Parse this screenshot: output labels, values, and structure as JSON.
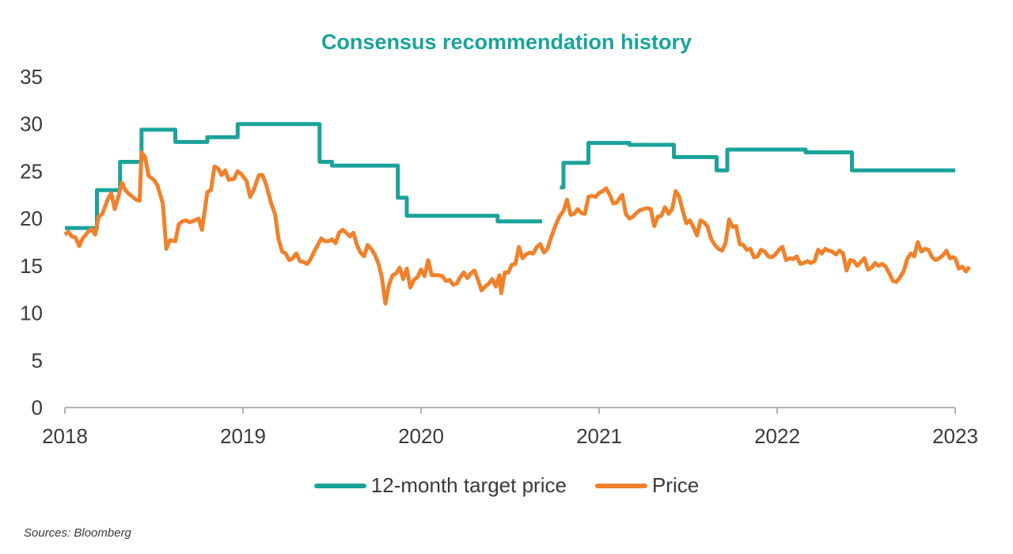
{
  "chart_data": {
    "type": "line",
    "title": "Consensus recommendation history",
    "xlabel": "",
    "ylabel": "",
    "ylim": [
      0,
      35
    ],
    "yticks": [
      0,
      5,
      10,
      15,
      20,
      25,
      30,
      35
    ],
    "xlim": [
      2018,
      2023
    ],
    "xticks": [
      2018,
      2019,
      2020,
      2021,
      2022,
      2023
    ],
    "grid": false,
    "legend_position": "bottom",
    "series": [
      {
        "name": "12-month target price",
        "color": "#1aa39a",
        "style": "step",
        "segments": [
          [
            [
              2018.0,
              19.0
            ],
            [
              2018.18,
              19.0
            ],
            [
              2018.18,
              23.0
            ],
            [
              2018.31,
              23.0
            ],
            [
              2018.31,
              26.0
            ],
            [
              2018.43,
              26.0
            ],
            [
              2018.43,
              29.4
            ],
            [
              2018.62,
              29.4
            ],
            [
              2018.62,
              28.1
            ],
            [
              2018.8,
              28.1
            ],
            [
              2018.8,
              28.6
            ],
            [
              2018.97,
              28.6
            ],
            [
              2018.97,
              30.0
            ],
            [
              2019.43,
              30.0
            ],
            [
              2019.43,
              26.0
            ],
            [
              2019.5,
              26.0
            ],
            [
              2019.5,
              25.6
            ],
            [
              2019.87,
              25.6
            ],
            [
              2019.87,
              22.2
            ],
            [
              2019.92,
              22.2
            ],
            [
              2019.92,
              20.3
            ],
            [
              2020.43,
              20.3
            ],
            [
              2020.43,
              19.7
            ],
            [
              2020.68,
              19.7
            ]
          ],
          [
            [
              2020.78,
              23.3
            ],
            [
              2020.8,
              23.3
            ],
            [
              2020.8,
              25.9
            ],
            [
              2020.94,
              25.9
            ],
            [
              2020.94,
              28.0
            ],
            [
              2021.17,
              28.0
            ],
            [
              2021.17,
              27.8
            ],
            [
              2021.42,
              27.8
            ],
            [
              2021.42,
              26.5
            ],
            [
              2021.66,
              26.5
            ],
            [
              2021.66,
              25.1
            ],
            [
              2021.72,
              25.1
            ],
            [
              2021.72,
              27.3
            ],
            [
              2022.16,
              27.3
            ],
            [
              2022.16,
              27.0
            ],
            [
              2022.42,
              27.0
            ],
            [
              2022.42,
              25.1
            ],
            [
              2023.0,
              25.1
            ]
          ]
        ]
      },
      {
        "name": "Price",
        "color": "#f0812b",
        "style": "line",
        "points": [
          [
            2018.0,
            18.3
          ],
          [
            2018.02,
            18.6
          ],
          [
            2018.04,
            18.1
          ],
          [
            2018.06,
            18.0
          ],
          [
            2018.08,
            17.1
          ],
          [
            2018.1,
            17.9
          ],
          [
            2018.13,
            18.6
          ],
          [
            2018.15,
            18.9
          ],
          [
            2018.17,
            18.3
          ],
          [
            2018.19,
            20.2
          ],
          [
            2018.21,
            20.5
          ],
          [
            2018.24,
            22.0
          ],
          [
            2018.26,
            22.7
          ],
          [
            2018.28,
            21.0
          ],
          [
            2018.3,
            22.3
          ],
          [
            2018.32,
            23.8
          ],
          [
            2018.34,
            23.0
          ],
          [
            2018.36,
            22.6
          ],
          [
            2018.38,
            22.3
          ],
          [
            2018.4,
            22.0
          ],
          [
            2018.42,
            21.9
          ],
          [
            2018.43,
            27.0
          ],
          [
            2018.45,
            26.5
          ],
          [
            2018.47,
            24.5
          ],
          [
            2018.5,
            24.1
          ],
          [
            2018.52,
            23.5
          ],
          [
            2018.55,
            21.6
          ],
          [
            2018.57,
            16.8
          ],
          [
            2018.59,
            17.7
          ],
          [
            2018.62,
            17.6
          ],
          [
            2018.64,
            19.4
          ],
          [
            2018.66,
            19.7
          ],
          [
            2018.68,
            19.8
          ],
          [
            2018.7,
            19.6
          ],
          [
            2018.73,
            19.8
          ],
          [
            2018.75,
            20.0
          ],
          [
            2018.77,
            18.8
          ],
          [
            2018.8,
            22.8
          ],
          [
            2018.82,
            23.0
          ],
          [
            2018.84,
            25.5
          ],
          [
            2018.86,
            25.3
          ],
          [
            2018.88,
            24.6
          ],
          [
            2018.9,
            25.1
          ],
          [
            2018.92,
            24.1
          ],
          [
            2018.95,
            24.2
          ],
          [
            2018.97,
            25.0
          ],
          [
            2018.99,
            24.7
          ],
          [
            2019.02,
            24.0
          ],
          [
            2019.04,
            22.3
          ],
          [
            2019.06,
            23.0
          ],
          [
            2019.09,
            24.6
          ],
          [
            2019.11,
            24.6
          ],
          [
            2019.13,
            23.6
          ],
          [
            2019.16,
            21.5
          ],
          [
            2019.18,
            20.5
          ],
          [
            2019.2,
            17.8
          ],
          [
            2019.22,
            16.5
          ],
          [
            2019.24,
            16.3
          ],
          [
            2019.26,
            15.6
          ],
          [
            2019.28,
            15.8
          ],
          [
            2019.3,
            16.3
          ],
          [
            2019.32,
            15.5
          ],
          [
            2019.34,
            15.4
          ],
          [
            2019.36,
            15.2
          ],
          [
            2019.38,
            15.7
          ],
          [
            2019.4,
            16.5
          ],
          [
            2019.42,
            17.2
          ],
          [
            2019.44,
            17.9
          ],
          [
            2019.46,
            17.6
          ],
          [
            2019.48,
            17.6
          ],
          [
            2019.5,
            17.8
          ],
          [
            2019.52,
            17.4
          ],
          [
            2019.54,
            18.5
          ],
          [
            2019.56,
            18.8
          ],
          [
            2019.58,
            18.5
          ],
          [
            2019.6,
            18.1
          ],
          [
            2019.62,
            18.5
          ],
          [
            2019.64,
            17.2
          ],
          [
            2019.66,
            16.4
          ],
          [
            2019.68,
            16.0
          ],
          [
            2019.7,
            17.2
          ],
          [
            2019.72,
            16.8
          ],
          [
            2019.74,
            16.2
          ],
          [
            2019.76,
            15.3
          ],
          [
            2019.78,
            13.8
          ],
          [
            2019.8,
            11.0
          ],
          [
            2019.82,
            13.0
          ],
          [
            2019.84,
            14.0
          ],
          [
            2019.86,
            14.2
          ],
          [
            2019.88,
            14.8
          ],
          [
            2019.9,
            13.6
          ],
          [
            2019.92,
            14.7
          ],
          [
            2019.94,
            12.7
          ],
          [
            2019.96,
            13.5
          ],
          [
            2019.98,
            13.8
          ],
          [
            2020.0,
            14.6
          ],
          [
            2020.02,
            13.9
          ],
          [
            2020.04,
            15.6
          ],
          [
            2020.06,
            14.0
          ],
          [
            2020.08,
            14.0
          ],
          [
            2020.1,
            14.0
          ],
          [
            2020.12,
            13.9
          ],
          [
            2020.14,
            13.4
          ],
          [
            2020.16,
            13.5
          ],
          [
            2020.18,
            13.0
          ],
          [
            2020.2,
            13.1
          ],
          [
            2020.22,
            13.8
          ],
          [
            2020.24,
            14.3
          ],
          [
            2020.26,
            13.7
          ],
          [
            2020.28,
            14.2
          ],
          [
            2020.3,
            14.5
          ],
          [
            2020.32,
            13.5
          ],
          [
            2020.34,
            12.4
          ],
          [
            2020.36,
            12.8
          ],
          [
            2020.38,
            13.1
          ],
          [
            2020.4,
            13.6
          ],
          [
            2020.42,
            12.8
          ],
          [
            2020.44,
            14.0
          ],
          [
            2020.45,
            12.1
          ],
          [
            2020.47,
            14.3
          ],
          [
            2020.49,
            14.3
          ],
          [
            2020.51,
            15.1
          ],
          [
            2020.53,
            15.2
          ],
          [
            2020.55,
            17.0
          ],
          [
            2020.57,
            15.8
          ],
          [
            2020.59,
            16.2
          ],
          [
            2020.61,
            16.4
          ],
          [
            2020.63,
            16.3
          ],
          [
            2020.65,
            17.0
          ],
          [
            2020.67,
            17.3
          ],
          [
            2020.69,
            16.4
          ],
          [
            2020.71,
            16.8
          ],
          [
            2020.73,
            18.0
          ],
          [
            2020.76,
            19.5
          ],
          [
            2020.78,
            20.3
          ],
          [
            2020.8,
            20.8
          ],
          [
            2020.82,
            22.0
          ],
          [
            2020.84,
            20.4
          ],
          [
            2020.86,
            20.5
          ],
          [
            2020.88,
            21.0
          ],
          [
            2020.9,
            20.6
          ],
          [
            2020.92,
            20.5
          ],
          [
            2020.94,
            22.3
          ],
          [
            2020.96,
            22.4
          ],
          [
            2020.98,
            22.3
          ],
          [
            2021.0,
            22.7
          ],
          [
            2021.02,
            22.9
          ],
          [
            2021.04,
            23.2
          ],
          [
            2021.06,
            22.5
          ],
          [
            2021.08,
            21.6
          ],
          [
            2021.1,
            21.7
          ],
          [
            2021.12,
            22.3
          ],
          [
            2021.13,
            22.5
          ],
          [
            2021.15,
            20.5
          ],
          [
            2021.17,
            20.0
          ],
          [
            2021.19,
            20.2
          ],
          [
            2021.21,
            20.6
          ],
          [
            2021.23,
            20.9
          ],
          [
            2021.25,
            21.0
          ],
          [
            2021.27,
            21.1
          ],
          [
            2021.29,
            21.0
          ],
          [
            2021.31,
            19.2
          ],
          [
            2021.33,
            20.2
          ],
          [
            2021.35,
            20.3
          ],
          [
            2021.37,
            21.2
          ],
          [
            2021.39,
            20.5
          ],
          [
            2021.41,
            21.0
          ],
          [
            2021.43,
            22.9
          ],
          [
            2021.45,
            22.3
          ],
          [
            2021.47,
            20.8
          ],
          [
            2021.49,
            19.5
          ],
          [
            2021.51,
            19.8
          ],
          [
            2021.53,
            19.1
          ],
          [
            2021.55,
            18.2
          ],
          [
            2021.57,
            19.8
          ],
          [
            2021.59,
            19.6
          ],
          [
            2021.61,
            19.1
          ],
          [
            2021.63,
            17.8
          ],
          [
            2021.65,
            17.2
          ],
          [
            2021.67,
            16.8
          ],
          [
            2021.69,
            16.6
          ],
          [
            2021.71,
            17.4
          ],
          [
            2021.73,
            19.9
          ],
          [
            2021.75,
            19.1
          ],
          [
            2021.77,
            19.2
          ],
          [
            2021.79,
            17.3
          ],
          [
            2021.81,
            17.2
          ],
          [
            2021.83,
            16.7
          ],
          [
            2021.85,
            16.8
          ],
          [
            2021.87,
            15.9
          ],
          [
            2021.89,
            16.0
          ],
          [
            2021.91,
            16.7
          ],
          [
            2021.93,
            16.5
          ],
          [
            2021.95,
            16.0
          ],
          [
            2021.97,
            15.9
          ],
          [
            2021.99,
            16.2
          ],
          [
            2022.01,
            16.7
          ],
          [
            2022.03,
            17.0
          ],
          [
            2022.05,
            15.6
          ],
          [
            2022.07,
            15.8
          ],
          [
            2022.09,
            15.7
          ],
          [
            2022.11,
            16.0
          ],
          [
            2022.13,
            15.2
          ],
          [
            2022.15,
            15.3
          ],
          [
            2022.17,
            15.5
          ],
          [
            2022.19,
            15.3
          ],
          [
            2022.21,
            15.5
          ],
          [
            2022.23,
            16.7
          ],
          [
            2022.25,
            16.3
          ],
          [
            2022.27,
            16.8
          ],
          [
            2022.29,
            16.6
          ],
          [
            2022.31,
            16.5
          ],
          [
            2022.33,
            16.2
          ],
          [
            2022.35,
            16.6
          ],
          [
            2022.37,
            16.3
          ],
          [
            2022.39,
            14.5
          ],
          [
            2022.41,
            15.6
          ],
          [
            2022.43,
            15.5
          ],
          [
            2022.45,
            15.0
          ],
          [
            2022.47,
            15.4
          ],
          [
            2022.49,
            15.8
          ],
          [
            2022.51,
            14.6
          ],
          [
            2022.53,
            14.8
          ],
          [
            2022.55,
            15.3
          ],
          [
            2022.57,
            15.0
          ],
          [
            2022.59,
            15.2
          ],
          [
            2022.61,
            14.9
          ],
          [
            2022.63,
            14.2
          ],
          [
            2022.65,
            13.4
          ],
          [
            2022.67,
            13.3
          ],
          [
            2022.69,
            13.8
          ],
          [
            2022.71,
            14.4
          ],
          [
            2022.73,
            15.7
          ],
          [
            2022.75,
            16.3
          ],
          [
            2022.77,
            16.0
          ],
          [
            2022.79,
            17.5
          ],
          [
            2022.81,
            16.5
          ],
          [
            2022.83,
            16.8
          ],
          [
            2022.85,
            16.7
          ],
          [
            2022.87,
            15.9
          ],
          [
            2022.89,
            15.6
          ],
          [
            2022.91,
            15.8
          ],
          [
            2022.93,
            16.1
          ],
          [
            2022.95,
            16.6
          ],
          [
            2022.97,
            15.8
          ],
          [
            2022.99,
            15.9
          ],
          [
            2023.0,
            15.8
          ],
          [
            2023.02,
            14.7
          ],
          [
            2023.04,
            14.9
          ],
          [
            2023.06,
            14.4
          ],
          [
            2023.08,
            14.9
          ]
        ]
      }
    ],
    "source_note": "Sources: Bloomberg"
  }
}
